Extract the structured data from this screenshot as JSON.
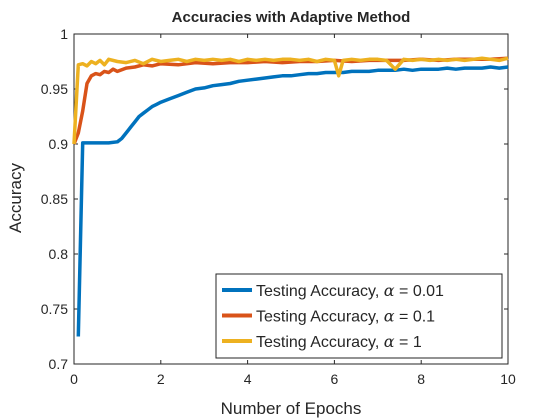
{
  "chart_data": {
    "type": "line",
    "title": "Accuracies with Adaptive Method",
    "xlabel": "Number of Epochs",
    "ylabel": "Accuracy",
    "xlim": [
      0,
      10
    ],
    "ylim": [
      0.7,
      1
    ],
    "x_ticks": [
      "0",
      "2",
      "4",
      "6",
      "8",
      "10"
    ],
    "y_ticks": [
      "0.7",
      "0.75",
      "0.8",
      "0.85",
      "0.9",
      "0.95",
      "1"
    ],
    "grid": false,
    "legend_position": "bottom-right",
    "series": [
      {
        "name": "Testing Accuracy, α = 0.01",
        "legend_prefix": "Testing Accuracy, ",
        "legend_symbol": "α",
        "legend_suffix": " = 0.01",
        "color": "#0072BD",
        "x": [
          0.1,
          0.2,
          0.4,
          0.6,
          0.8,
          1.0,
          1.1,
          1.2,
          1.3,
          1.4,
          1.5,
          1.6,
          1.7,
          1.8,
          1.9,
          2.0,
          2.2,
          2.4,
          2.6,
          2.8,
          3.0,
          3.2,
          3.4,
          3.6,
          3.8,
          4.0,
          4.2,
          4.4,
          4.6,
          4.8,
          5.0,
          5.2,
          5.4,
          5.6,
          5.8,
          6.0,
          6.2,
          6.4,
          6.6,
          6.8,
          7.0,
          7.2,
          7.4,
          7.6,
          7.8,
          8.0,
          8.2,
          8.4,
          8.6,
          8.8,
          9.0,
          9.2,
          9.4,
          9.6,
          9.8,
          10.0
        ],
        "values": [
          0.725,
          0.901,
          0.901,
          0.901,
          0.901,
          0.902,
          0.905,
          0.91,
          0.915,
          0.92,
          0.925,
          0.928,
          0.931,
          0.934,
          0.936,
          0.938,
          0.941,
          0.944,
          0.947,
          0.95,
          0.951,
          0.953,
          0.954,
          0.955,
          0.957,
          0.958,
          0.959,
          0.96,
          0.961,
          0.962,
          0.962,
          0.963,
          0.964,
          0.964,
          0.965,
          0.965,
          0.965,
          0.966,
          0.966,
          0.966,
          0.967,
          0.967,
          0.967,
          0.968,
          0.967,
          0.968,
          0.968,
          0.968,
          0.969,
          0.968,
          0.969,
          0.969,
          0.969,
          0.97,
          0.969,
          0.97
        ]
      },
      {
        "name": "Testing Accuracy, α = 0.1",
        "legend_prefix": "Testing Accuracy, ",
        "legend_symbol": "α",
        "legend_suffix": " = 0.1",
        "color": "#D95319",
        "x": [
          0.0,
          0.1,
          0.2,
          0.3,
          0.4,
          0.5,
          0.6,
          0.7,
          0.8,
          0.9,
          1.0,
          1.2,
          1.4,
          1.6,
          1.8,
          2.0,
          2.4,
          2.8,
          3.2,
          3.6,
          4.0,
          4.4,
          4.8,
          5.2,
          5.6,
          6.0,
          6.4,
          6.8,
          7.2,
          7.6,
          8.0,
          8.4,
          8.8,
          9.2,
          9.6,
          10.0
        ],
        "values": [
          0.9,
          0.91,
          0.93,
          0.955,
          0.962,
          0.964,
          0.963,
          0.966,
          0.965,
          0.968,
          0.966,
          0.969,
          0.97,
          0.972,
          0.971,
          0.973,
          0.972,
          0.974,
          0.973,
          0.974,
          0.974,
          0.975,
          0.974,
          0.975,
          0.975,
          0.976,
          0.975,
          0.976,
          0.976,
          0.976,
          0.977,
          0.976,
          0.977,
          0.977,
          0.977,
          0.978
        ]
      },
      {
        "name": "Testing Accuracy, α = 1",
        "legend_prefix": "Testing Accuracy, ",
        "legend_symbol": "α",
        "legend_suffix": " = 1",
        "color": "#EDB120",
        "x": [
          0.0,
          0.1,
          0.2,
          0.3,
          0.4,
          0.5,
          0.6,
          0.7,
          0.8,
          1.0,
          1.2,
          1.4,
          1.6,
          1.8,
          2.0,
          2.2,
          2.4,
          2.6,
          2.8,
          3.0,
          3.2,
          3.4,
          3.6,
          3.8,
          4.0,
          4.2,
          4.4,
          4.6,
          4.8,
          5.0,
          5.2,
          5.4,
          5.6,
          5.8,
          6.0,
          6.1,
          6.2,
          6.4,
          6.6,
          6.8,
          7.0,
          7.2,
          7.4,
          7.6,
          7.8,
          8.0,
          8.2,
          8.4,
          8.6,
          8.8,
          9.0,
          9.2,
          9.4,
          9.6,
          9.8,
          10.0
        ],
        "values": [
          0.9,
          0.972,
          0.973,
          0.971,
          0.975,
          0.973,
          0.976,
          0.972,
          0.977,
          0.975,
          0.974,
          0.976,
          0.973,
          0.977,
          0.975,
          0.976,
          0.977,
          0.975,
          0.977,
          0.976,
          0.977,
          0.976,
          0.977,
          0.975,
          0.977,
          0.976,
          0.977,
          0.976,
          0.977,
          0.977,
          0.976,
          0.977,
          0.975,
          0.977,
          0.976,
          0.962,
          0.976,
          0.977,
          0.976,
          0.977,
          0.977,
          0.976,
          0.968,
          0.977,
          0.976,
          0.977,
          0.976,
          0.977,
          0.976,
          0.977,
          0.976,
          0.977,
          0.978,
          0.977,
          0.976,
          0.978
        ]
      }
    ]
  }
}
